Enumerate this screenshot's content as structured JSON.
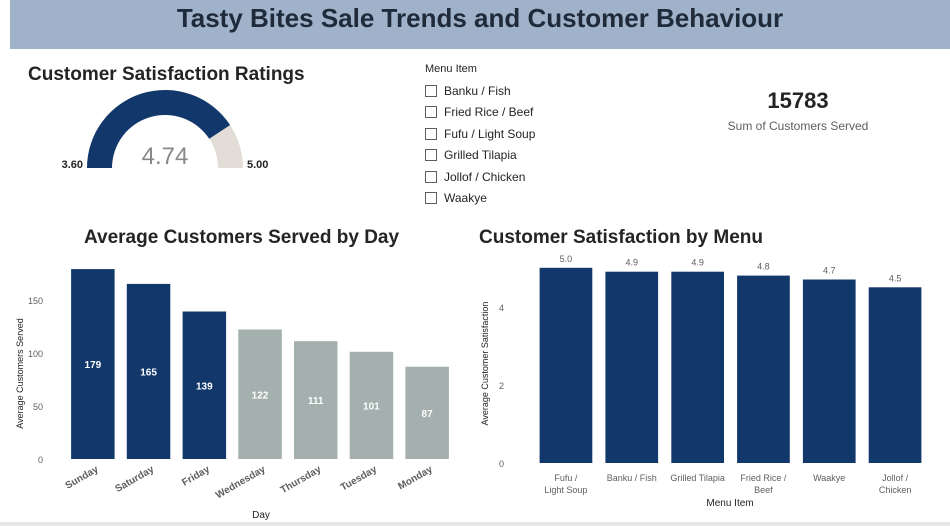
{
  "header": {
    "title": "Tasty Bites Sale Trends and Customer Behaviour"
  },
  "gauge": {
    "title": "Customer Satisfaction Ratings",
    "min": 3.6,
    "max": 5.0,
    "value": 4.74,
    "min_label": "3.60",
    "max_label": "5.00",
    "value_label": "4.74",
    "fill_color": "#12386b",
    "track_color": "#e3ddd7"
  },
  "slicer": {
    "header": "Menu Item",
    "items": [
      {
        "label": "Banku / Fish"
      },
      {
        "label": "Fried Rice / Beef"
      },
      {
        "label": "Fufu / Light Soup"
      },
      {
        "label": "Grilled Tilapia"
      },
      {
        "label": "Jollof / Chicken"
      },
      {
        "label": "Waakye"
      }
    ]
  },
  "kpi": {
    "value": "15783",
    "label": "Sum of Customers Served"
  },
  "colors": {
    "highlight": "#12386b",
    "muted": "#a3b0ae"
  },
  "chart_data": [
    {
      "type": "bar",
      "title": "Average Customers Served by Day",
      "xlabel": "Day",
      "ylabel": "Average Customers Served",
      "categories": [
        "Sunday",
        "Saturday",
        "Friday",
        "Wednesday",
        "Thursday",
        "Tuesday",
        "Monday"
      ],
      "values": [
        179,
        165,
        139,
        122,
        111,
        101,
        87
      ],
      "data_labels": [
        "179",
        "165",
        "139",
        "122",
        "111",
        "101",
        "87"
      ],
      "highlighted": [
        true,
        true,
        true,
        false,
        false,
        false,
        false
      ],
      "ylim": [
        0,
        180
      ],
      "yticks": [
        0,
        50,
        100,
        150
      ],
      "grid": false,
      "legend": "none"
    },
    {
      "type": "bar",
      "title": "Customer Satisfaction by Menu",
      "xlabel": "Menu Item",
      "ylabel": "Average Customer Satisfaction",
      "categories": [
        "Fufu / Light Soup",
        "Banku / Fish",
        "Grilled Tilapia",
        "Fried Rice / Beef",
        "Waakye",
        "Jollof / Chicken"
      ],
      "values": [
        5.0,
        4.9,
        4.9,
        4.8,
        4.7,
        4.5
      ],
      "data_labels": [
        "5.0",
        "4.9",
        "4.9",
        "4.8",
        "4.7",
        "4.5"
      ],
      "ylim": [
        0,
        5.2
      ],
      "yticks": [
        0,
        2,
        4
      ],
      "grid": false,
      "legend": "none"
    }
  ]
}
